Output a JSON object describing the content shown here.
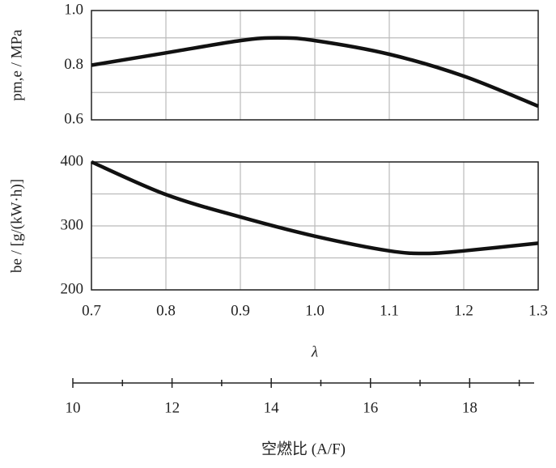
{
  "chart_data": [
    {
      "type": "line",
      "ylabel": "pm,e / MPa",
      "x": [
        0.7,
        0.8,
        0.9,
        0.95,
        1.0,
        1.1,
        1.2,
        1.3
      ],
      "values": [
        0.8,
        0.845,
        0.89,
        0.9,
        0.89,
        0.84,
        0.76,
        0.65
      ],
      "color": "#111111",
      "xlim": [
        0.7,
        1.3
      ],
      "ylim": [
        0.6,
        1.0
      ],
      "yticks": [
        0.6,
        0.8,
        {
          "value": 1.0,
          "label": "1.0"
        }
      ],
      "yminorticks": [
        0.7,
        0.9
      ],
      "xgrid": [
        0.8,
        0.9,
        1.0,
        1.1,
        1.2
      ],
      "grid": true
    },
    {
      "type": "line",
      "ylabel": "be / [g/(kW·h)]",
      "xlabel": "λ",
      "x": [
        0.7,
        0.8,
        0.9,
        1.0,
        1.1,
        1.15,
        1.2,
        1.3
      ],
      "values": [
        400,
        349,
        314,
        284,
        261,
        257,
        261,
        273
      ],
      "color": "#111111",
      "xlim": [
        0.7,
        1.3
      ],
      "ylim": [
        200,
        400
      ],
      "yticks": [
        200,
        300,
        400
      ],
      "yminorticks": [
        250,
        350
      ],
      "xticks": [
        0.7,
        0.8,
        0.9,
        {
          "value": 1.0,
          "label": "1.0"
        },
        1.1,
        1.2,
        1.3
      ],
      "grid": true,
      "x2label": "空燃比 (A/F)",
      "x2lim": [
        10,
        19.3
      ],
      "x2ticks": [
        10,
        12,
        14,
        16,
        18
      ],
      "x2minorticks": [
        11,
        13,
        15,
        17,
        19
      ]
    }
  ]
}
